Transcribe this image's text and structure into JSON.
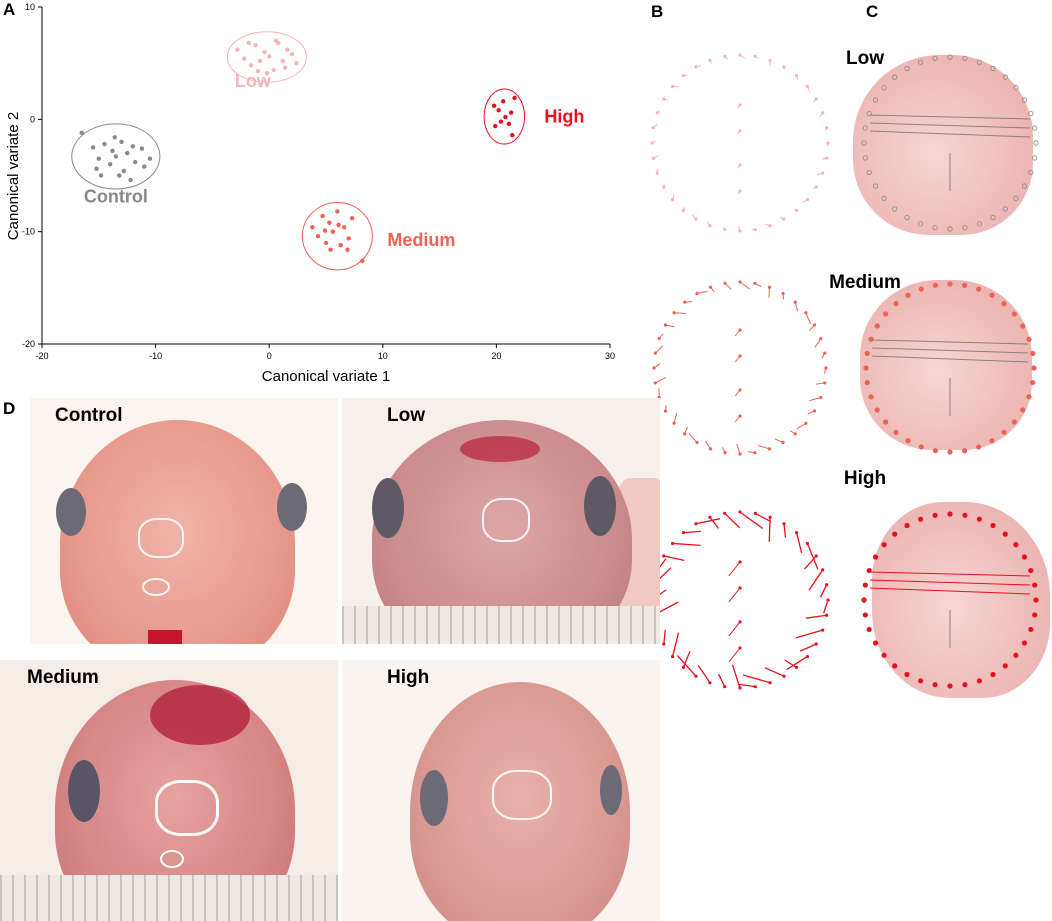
{
  "panels": {
    "a": "A",
    "b": "B",
    "c": "C",
    "d": "D"
  },
  "chart_data": {
    "type": "scatter",
    "xlabel": "Canonical variate 1",
    "ylabel": "Canonical variate 2",
    "xlim": [
      -20,
      30
    ],
    "ylim": [
      -20,
      10
    ],
    "xticks": [
      "-20",
      "-10",
      "0",
      "10",
      "20",
      "30"
    ],
    "yticks": [
      "10",
      "0",
      "-10",
      "-20"
    ],
    "grid": false,
    "series": [
      {
        "name": "Control",
        "color": "#888888",
        "points": [
          [
            -16.5,
            -1.2
          ],
          [
            -15.5,
            -2.5
          ],
          [
            -15,
            -3.5
          ],
          [
            -14.5,
            -2.2
          ],
          [
            -14,
            -4
          ],
          [
            -13.8,
            -2.8
          ],
          [
            -13.5,
            -3.3
          ],
          [
            -13,
            -2
          ],
          [
            -12.8,
            -4.6
          ],
          [
            -12.5,
            -3
          ],
          [
            -12,
            -2.4
          ],
          [
            -11.8,
            -3.8
          ],
          [
            -11.2,
            -2.6
          ],
          [
            -11,
            -4.2
          ],
          [
            -13.2,
            -5
          ],
          [
            -12.2,
            -5.4
          ],
          [
            -14.8,
            -5
          ],
          [
            -10.5,
            -3.5
          ],
          [
            -15.2,
            -4.4
          ],
          [
            -13.6,
            -1.6
          ]
        ]
      },
      {
        "name": "Low",
        "color": "#f4b4b8",
        "points": [
          [
            -2.8,
            6.2
          ],
          [
            -2.2,
            5.4
          ],
          [
            -1.6,
            4.8
          ],
          [
            -1.2,
            6.6
          ],
          [
            -0.8,
            5.2
          ],
          [
            -0.4,
            6.0
          ],
          [
            0,
            5.6
          ],
          [
            0.4,
            4.4
          ],
          [
            0.8,
            6.8
          ],
          [
            1.2,
            5.2
          ],
          [
            1.6,
            6.2
          ],
          [
            2.0,
            5.8
          ],
          [
            -0.2,
            4.1
          ],
          [
            0.6,
            7.0
          ],
          [
            -1.8,
            6.8
          ],
          [
            1.4,
            4.6
          ],
          [
            2.4,
            5.0
          ],
          [
            -1,
            4.3
          ]
        ]
      },
      {
        "name": "Medium",
        "color": "#ee6155",
        "points": [
          [
            3.8,
            -9.6
          ],
          [
            4.3,
            -10.4
          ],
          [
            4.7,
            -8.6
          ],
          [
            5.0,
            -11.0
          ],
          [
            5.3,
            -9.2
          ],
          [
            5.6,
            -10.0
          ],
          [
            6.0,
            -8.2
          ],
          [
            6.3,
            -11.2
          ],
          [
            6.6,
            -9.6
          ],
          [
            7.0,
            -10.6
          ],
          [
            7.3,
            -8.8
          ],
          [
            5.4,
            -11.6
          ],
          [
            6.9,
            -11.6
          ],
          [
            4.9,
            -9.9
          ],
          [
            6.1,
            -9.4
          ],
          [
            8.2,
            -12.6
          ]
        ]
      },
      {
        "name": "High",
        "color": "#e8101e",
        "points": [
          [
            19.8,
            1.2
          ],
          [
            20.2,
            0.8
          ],
          [
            20.6,
            1.6
          ],
          [
            20.8,
            0.2
          ],
          [
            21.1,
            -0.4
          ],
          [
            19.9,
            -0.6
          ],
          [
            20.4,
            -0.2
          ],
          [
            21.6,
            1.9
          ],
          [
            21.3,
            0.6
          ],
          [
            21.4,
            -1.4
          ]
        ]
      }
    ],
    "annotations": [
      "Control",
      "Low",
      "Medium",
      "High"
    ]
  },
  "morph_titles": [
    "Low",
    "Medium",
    "High"
  ],
  "photos": [
    {
      "label": "Control"
    },
    {
      "label": "Low"
    },
    {
      "label": "Medium"
    },
    {
      "label": "High"
    }
  ],
  "colors": {
    "control": "#888888",
    "low": "#f4b4b8",
    "medium": "#ee6155",
    "high": "#e8101e",
    "tissue": "#e8a9a6"
  }
}
